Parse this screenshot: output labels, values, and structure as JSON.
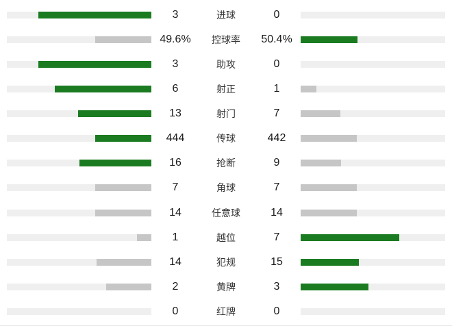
{
  "colors": {
    "green": "#1b7b21",
    "gray": "#c6c6c6",
    "track": "#efefef",
    "value_text": "#1a1a1a",
    "label_text": "#333333",
    "background": "#ffffff"
  },
  "chart_data": {
    "type": "bar",
    "layout": "mirrored-horizontal-comparison",
    "title": "",
    "legend_position": "none",
    "description": "Football match statistics comparison, home values on left, away values on right; higher value shown as green bar, lower/tied as gray bar; bars grow from center outward-anchored tracks",
    "rows": [
      {
        "label": "进球",
        "home": "3",
        "away": "0",
        "home_val": 3,
        "away_val": 0,
        "home_pct": 78,
        "away_pct": 0,
        "home_style": "green",
        "away_style": "none"
      },
      {
        "label": "控球率",
        "home": "49.6%",
        "away": "50.4%",
        "home_val": 49.6,
        "away_val": 50.4,
        "home_pct": 38.7,
        "away_pct": 39.3,
        "home_style": "gray",
        "away_style": "green"
      },
      {
        "label": "助攻",
        "home": "3",
        "away": "0",
        "home_val": 3,
        "away_val": 0,
        "home_pct": 78,
        "away_pct": 0,
        "home_style": "green",
        "away_style": "none"
      },
      {
        "label": "射正",
        "home": "6",
        "away": "1",
        "home_val": 6,
        "away_val": 1,
        "home_pct": 66.9,
        "away_pct": 11.1,
        "home_style": "green",
        "away_style": "gray"
      },
      {
        "label": "射门",
        "home": "13",
        "away": "7",
        "home_val": 13,
        "away_val": 7,
        "home_pct": 50.7,
        "away_pct": 27.3,
        "home_style": "green",
        "away_style": "gray"
      },
      {
        "label": "传球",
        "home": "444",
        "away": "442",
        "home_val": 444,
        "away_val": 442,
        "home_pct": 39.1,
        "away_pct": 38.9,
        "home_style": "green",
        "away_style": "gray"
      },
      {
        "label": "抢断",
        "home": "16",
        "away": "9",
        "home_val": 16,
        "away_val": 9,
        "home_pct": 49.9,
        "away_pct": 28.1,
        "home_style": "green",
        "away_style": "gray"
      },
      {
        "label": "角球",
        "home": "7",
        "away": "7",
        "home_val": 7,
        "away_val": 7,
        "home_pct": 39,
        "away_pct": 39,
        "home_style": "gray",
        "away_style": "gray"
      },
      {
        "label": "任意球",
        "home": "14",
        "away": "14",
        "home_val": 14,
        "away_val": 14,
        "home_pct": 39,
        "away_pct": 39,
        "home_style": "gray",
        "away_style": "gray"
      },
      {
        "label": "越位",
        "home": "1",
        "away": "7",
        "home_val": 1,
        "away_val": 7,
        "home_pct": 9.8,
        "away_pct": 68.3,
        "home_style": "gray",
        "away_style": "green"
      },
      {
        "label": "犯规",
        "home": "14",
        "away": "15",
        "home_val": 14,
        "away_val": 15,
        "home_pct": 37.7,
        "away_pct": 40.3,
        "home_style": "gray",
        "away_style": "green"
      },
      {
        "label": "黄牌",
        "home": "2",
        "away": "3",
        "home_val": 2,
        "away_val": 3,
        "home_pct": 31.2,
        "away_pct": 46.8,
        "home_style": "gray",
        "away_style": "green"
      },
      {
        "label": "红牌",
        "home": "0",
        "away": "0",
        "home_val": 0,
        "away_val": 0,
        "home_pct": 0,
        "away_pct": 0,
        "home_style": "none",
        "away_style": "none"
      }
    ]
  }
}
